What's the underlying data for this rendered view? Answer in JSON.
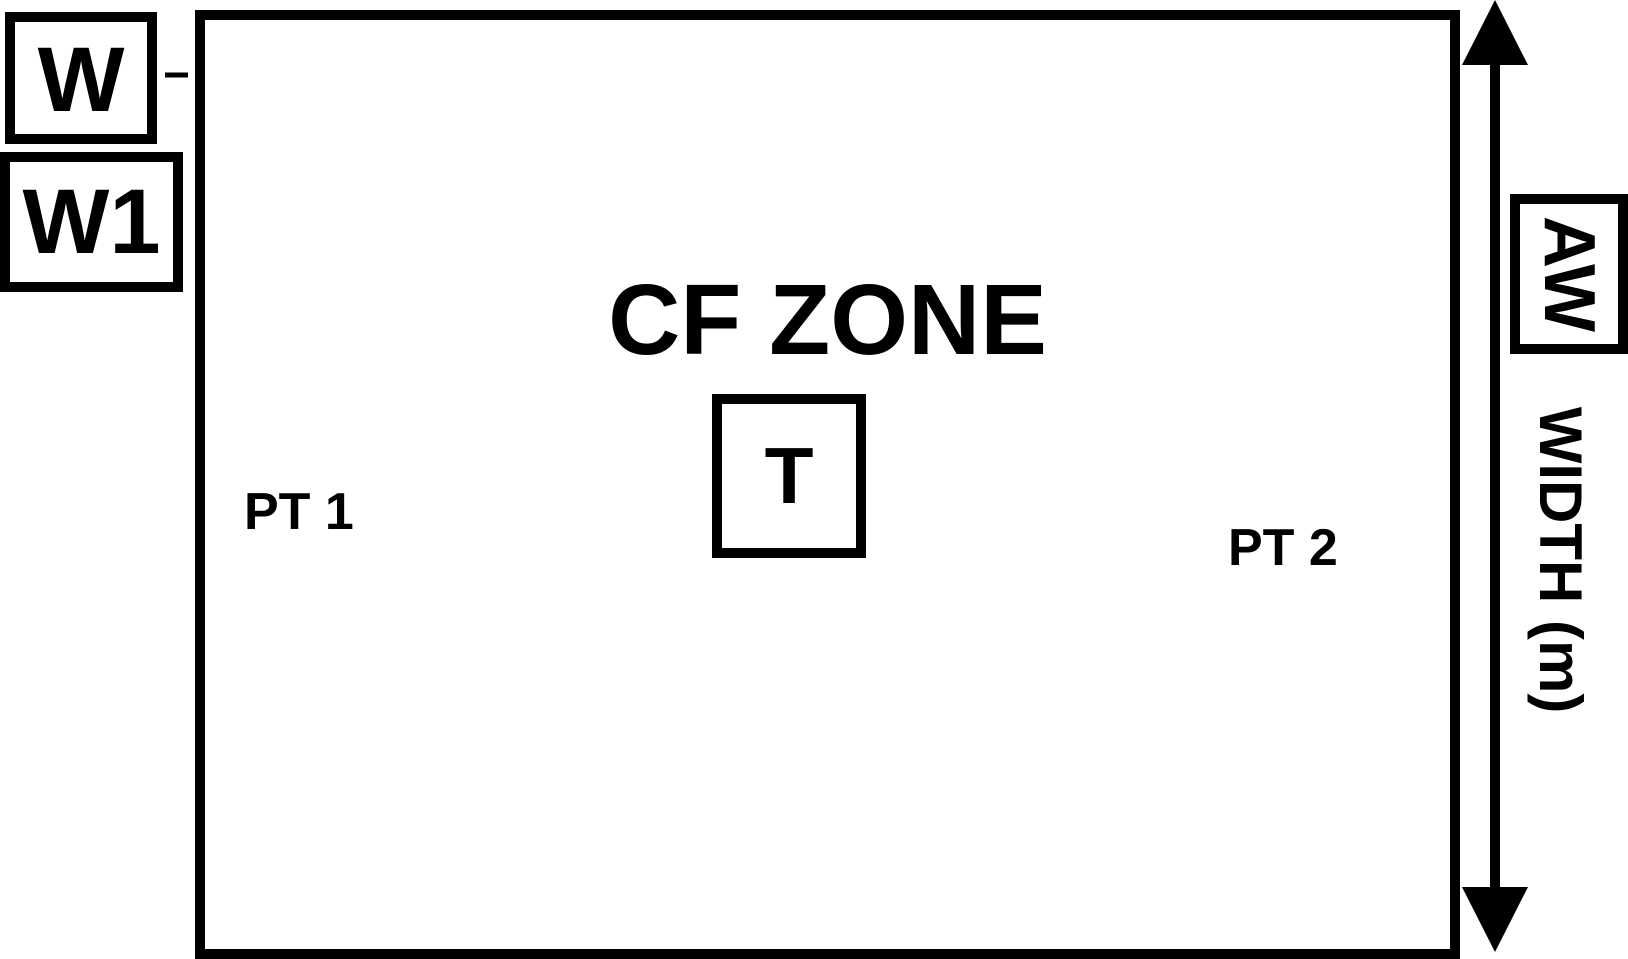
{
  "diagram": {
    "zone_title": "CF ZONE",
    "well_w": "W",
    "well_w1": "W1",
    "center_marker": "T",
    "point1": "PT 1",
    "point2": "PT 2",
    "aw_marker": "AW",
    "width_label": "WIDTH (m)",
    "dash": "–"
  },
  "colors": {
    "stroke": "#000000",
    "background": "#ffffff"
  }
}
